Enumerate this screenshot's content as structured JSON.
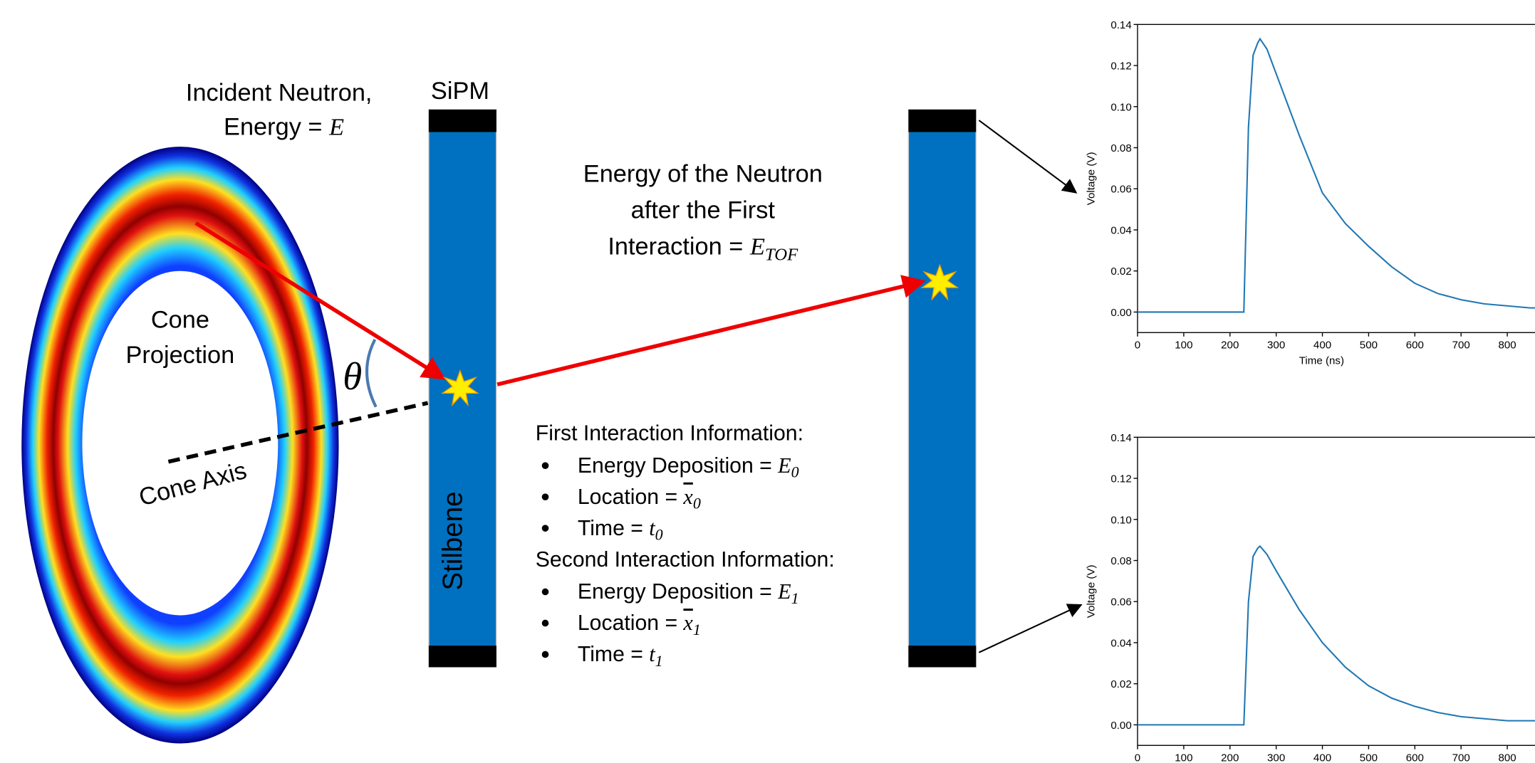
{
  "diagram": {
    "incident_line1": "Incident Neutron,",
    "incident_line2": "Energy =",
    "incident_symbol": "E",
    "sipm": "SiPM",
    "after": {
      "line1": "Energy of the Neutron",
      "line2": "after the First",
      "line3": "Interaction =",
      "symbol": "E",
      "subscript": "TOF"
    },
    "cone_projection": [
      "Cone",
      "Projection"
    ],
    "cone_axis": "Cone Axis",
    "theta": "θ",
    "stilbene": "Stilbene",
    "first_heading": "First Interaction Information:",
    "first_items": [
      {
        "label": "Energy Deposition =",
        "symbol": "E",
        "subscript": "0"
      },
      {
        "label": "Location =",
        "symbol": "x",
        "subscript": "0"
      },
      {
        "label": "Time =",
        "symbol": "t",
        "subscript": "0"
      }
    ],
    "second_heading": "Second Interaction Information:",
    "second_items": [
      {
        "label": "Energy Deposition =",
        "symbol": "E",
        "subscript": "1"
      },
      {
        "label": "Location =",
        "symbol": "x",
        "subscript": "1"
      },
      {
        "label": "Time =",
        "symbol": "t",
        "subscript": "1"
      }
    ]
  },
  "chart_data": [
    {
      "type": "line",
      "xlabel": "Time (ns)",
      "ylabel": "Voltage (V)",
      "xlim": [
        0,
        860
      ],
      "ylim": [
        -0.01,
        0.14
      ],
      "xticks": [
        0,
        100,
        200,
        300,
        400,
        500,
        600,
        700,
        800
      ],
      "yticks": [
        {
          "value": 0,
          "label": "0.00"
        },
        {
          "value": 0.02,
          "label": "0.02"
        },
        {
          "value": 0.04,
          "label": "0.04"
        },
        {
          "value": 0.06,
          "label": "0.06"
        },
        {
          "value": 0.08,
          "label": "0.08"
        },
        {
          "value": 0.1,
          "label": "0.10"
        },
        {
          "value": 0.12,
          "label": "0.12"
        },
        {
          "value": 0.14,
          "label": "0.14"
        }
      ],
      "color": "#1f77b4",
      "x": [
        0,
        50,
        100,
        150,
        200,
        230,
        240,
        250,
        260,
        265,
        280,
        300,
        350,
        400,
        450,
        500,
        550,
        600,
        650,
        700,
        750,
        800,
        850,
        860
      ],
      "values": [
        0,
        0,
        0,
        0,
        0,
        0,
        0.09,
        0.125,
        0.131,
        0.133,
        0.128,
        0.116,
        0.086,
        0.058,
        0.043,
        0.032,
        0.022,
        0.014,
        0.009,
        0.006,
        0.004,
        0.003,
        0.002,
        0.002
      ]
    },
    {
      "type": "line",
      "ylabel": "Voltage (V)",
      "xlim": [
        0,
        860
      ],
      "ylim": [
        -0.01,
        0.14
      ],
      "xticks": [
        0,
        100,
        200,
        300,
        400,
        500,
        600,
        700,
        800
      ],
      "yticks": [
        {
          "value": 0,
          "label": "0.00"
        },
        {
          "value": 0.02,
          "label": "0.02"
        },
        {
          "value": 0.04,
          "label": "0.04"
        },
        {
          "value": 0.06,
          "label": "0.06"
        },
        {
          "value": 0.08,
          "label": "0.08"
        },
        {
          "value": 0.1,
          "label": "0.10"
        },
        {
          "value": 0.12,
          "label": "0.12"
        },
        {
          "value": 0.14,
          "label": "0.14"
        }
      ],
      "color": "#1f77b4",
      "x": [
        0,
        50,
        100,
        150,
        200,
        230,
        240,
        250,
        260,
        265,
        280,
        300,
        350,
        400,
        450,
        500,
        550,
        600,
        650,
        700,
        750,
        800,
        850,
        860
      ],
      "values": [
        0,
        0,
        0,
        0,
        0,
        0,
        0.06,
        0.082,
        0.086,
        0.087,
        0.083,
        0.075,
        0.056,
        0.04,
        0.028,
        0.019,
        0.013,
        0.009,
        0.006,
        0.004,
        0.003,
        0.002,
        0.002,
        0.002
      ]
    }
  ]
}
